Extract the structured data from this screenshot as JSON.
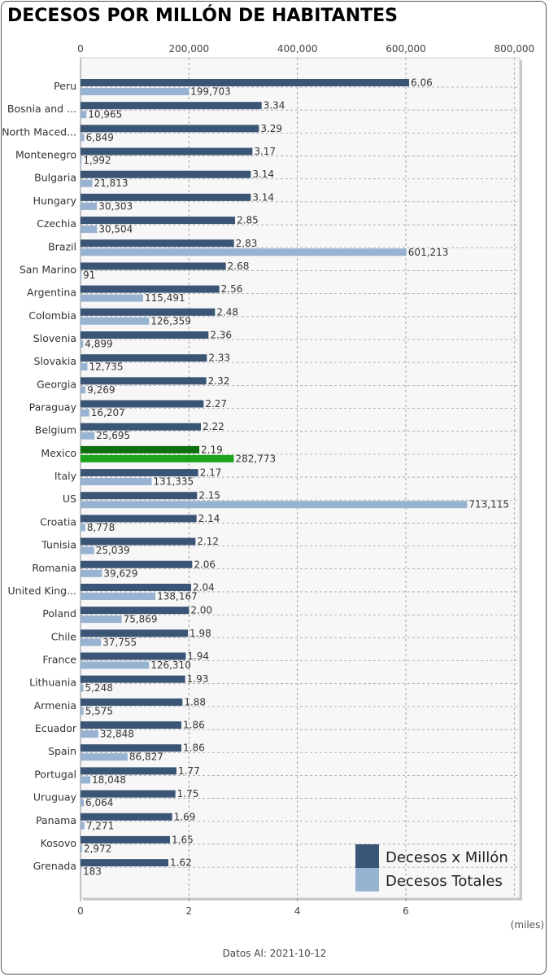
{
  "title": "DECESOS POR MILLÓN DE HABITANTES",
  "units_note": "(miles)",
  "footer": "Datos Al: 2021-10-12",
  "colors": {
    "per_million": "#3a5575",
    "total": "#98b2d1",
    "highlight_per_million": "#0e6e0e",
    "highlight_total": "#1aa51a",
    "plot_bg": "#f7f7f7",
    "grid": "#a0a0a0"
  },
  "chart_data": {
    "type": "bar",
    "orientation": "horizontal",
    "highlight_category": "Mexico",
    "categories": [
      "Peru",
      "Bosnia and ...",
      "North Maced...",
      "Montenegro",
      "Bulgaria",
      "Hungary",
      "Czechia",
      "Brazil",
      "San Marino",
      "Argentina",
      "Colombia",
      "Slovenia",
      "Slovakia",
      "Georgia",
      "Paraguay",
      "Belgium",
      "Mexico",
      "Italy",
      "US",
      "Croatia",
      "Tunisia",
      "Romania",
      "United King...",
      "Poland",
      "Chile",
      "France",
      "Lithuania",
      "Armenia",
      "Ecuador",
      "Spain",
      "Portugal",
      "Uruguay",
      "Panama",
      "Kosovo",
      "Grenada"
    ],
    "series": [
      {
        "name": "Decesos x Millón",
        "axis": "bottom",
        "values": [
          6.06,
          3.34,
          3.29,
          3.17,
          3.14,
          3.14,
          2.85,
          2.83,
          2.68,
          2.56,
          2.48,
          2.36,
          2.33,
          2.32,
          2.27,
          2.22,
          2.19,
          2.17,
          2.15,
          2.14,
          2.12,
          2.06,
          2.04,
          2.0,
          1.98,
          1.94,
          1.93,
          1.88,
          1.86,
          1.86,
          1.77,
          1.75,
          1.69,
          1.65,
          1.62
        ],
        "labels": [
          "6.06",
          "3.34",
          "3.29",
          "3.17",
          "3.14",
          "3.14",
          "2.85",
          "2.83",
          "2.68",
          "2.56",
          "2.48",
          "2.36",
          "2.33",
          "2.32",
          "2.27",
          "2.22",
          "2.19",
          "2.17",
          "2.15",
          "2.14",
          "2.12",
          "2.06",
          "2.04",
          "2.00",
          "1.98",
          "1.94",
          "1.93",
          "1.88",
          "1.86",
          "1.86",
          "1.77",
          "1.75",
          "1.69",
          "1.65",
          "1.62"
        ]
      },
      {
        "name": "Decesos Totales",
        "axis": "top",
        "values": [
          199703,
          10965,
          6849,
          1992,
          21813,
          30303,
          30504,
          601213,
          91,
          115491,
          126359,
          4899,
          12735,
          9269,
          16207,
          25695,
          282773,
          131335,
          713115,
          8778,
          25039,
          39629,
          138167,
          75869,
          37755,
          126310,
          5248,
          5575,
          32848,
          86827,
          18048,
          6064,
          7271,
          2972,
          183
        ],
        "labels": [
          "199,703",
          "10,965",
          "6,849",
          "1,992",
          "21,813",
          "30,303",
          "30,504",
          "601,213",
          "91",
          "115,491",
          "126,359",
          "4,899",
          "12,735",
          "9,269",
          "16,207",
          "25,695",
          "282,773",
          "131,335",
          "713,115",
          "8,778",
          "25,039",
          "39,629",
          "138,167",
          "75,869",
          "37,755",
          "126,310",
          "5,248",
          "5,575",
          "32,848",
          "86,827",
          "18,048",
          "6,064",
          "7,271",
          "2,972",
          "183"
        ]
      }
    ],
    "x_bottom": {
      "min": 0,
      "max": 8.1,
      "ticks": [
        0,
        2,
        4,
        6
      ],
      "tick_labels": [
        "0",
        "2",
        "4",
        "6"
      ]
    },
    "x_top": {
      "min": 0,
      "max": 810000,
      "ticks": [
        0,
        200000,
        400000,
        600000,
        800000
      ],
      "tick_labels": [
        "0",
        "200,000",
        "400,000",
        "600,000",
        "800,000"
      ]
    },
    "grid": true,
    "legend_position": "bottom-right"
  }
}
